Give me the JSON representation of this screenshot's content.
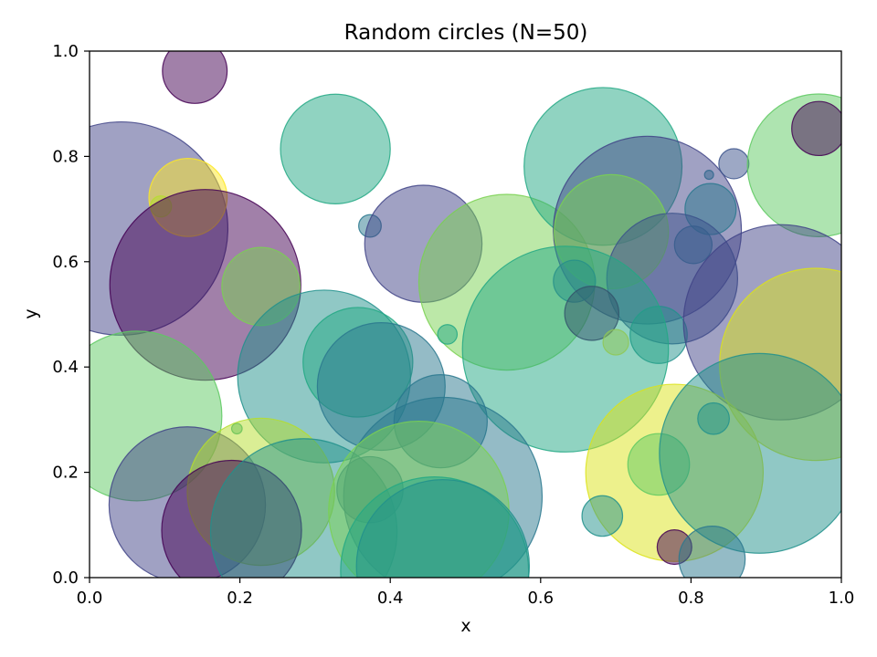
{
  "chart_data": {
    "type": "scatter",
    "title": "Random circles (N=50)",
    "xlabel": "x",
    "ylabel": "y",
    "xlim": [
      0.0,
      1.0
    ],
    "ylim": [
      0.0,
      1.0
    ],
    "xticks": [
      "0.0",
      "0.2",
      "0.4",
      "0.6",
      "0.8",
      "1.0"
    ],
    "yticks": [
      "0.0",
      "0.2",
      "0.4",
      "0.6",
      "0.8",
      "1.0"
    ],
    "grid": false,
    "alpha": 0.5,
    "points": [
      {
        "x": 0.14,
        "y": 0.962,
        "r": 0.043,
        "color": "#440154"
      },
      {
        "x": 0.327,
        "y": 0.814,
        "r": 0.073,
        "color": "#22a884"
      },
      {
        "x": 0.042,
        "y": 0.663,
        "r": 0.142,
        "color": "#414487"
      },
      {
        "x": 0.131,
        "y": 0.722,
        "r": 0.052,
        "color": "#fde725"
      },
      {
        "x": 0.095,
        "y": 0.705,
        "r": 0.014,
        "color": "#b5de2b"
      },
      {
        "x": 0.154,
        "y": 0.556,
        "r": 0.127,
        "color": "#440154"
      },
      {
        "x": 0.228,
        "y": 0.553,
        "r": 0.052,
        "color": "#7ad151"
      },
      {
        "x": 0.373,
        "y": 0.668,
        "r": 0.015,
        "color": "#2a788e"
      },
      {
        "x": 0.444,
        "y": 0.634,
        "r": 0.078,
        "color": "#414487"
      },
      {
        "x": 0.555,
        "y": 0.561,
        "r": 0.117,
        "color": "#7ad151"
      },
      {
        "x": 0.683,
        "y": 0.781,
        "r": 0.105,
        "color": "#22a884"
      },
      {
        "x": 0.742,
        "y": 0.66,
        "r": 0.125,
        "color": "#414487"
      },
      {
        "x": 0.694,
        "y": 0.657,
        "r": 0.076,
        "color": "#7ad151"
      },
      {
        "x": 0.826,
        "y": 0.7,
        "r": 0.034,
        "color": "#2a788e"
      },
      {
        "x": 0.857,
        "y": 0.786,
        "r": 0.02,
        "color": "#3b528b"
      },
      {
        "x": 0.824,
        "y": 0.765,
        "r": 0.006,
        "color": "#31688e"
      },
      {
        "x": 0.803,
        "y": 0.632,
        "r": 0.025,
        "color": "#31688e"
      },
      {
        "x": 0.97,
        "y": 0.783,
        "r": 0.095,
        "color": "#5ec962"
      },
      {
        "x": 0.97,
        "y": 0.853,
        "r": 0.036,
        "color": "#440154"
      },
      {
        "x": 0.775,
        "y": 0.568,
        "r": 0.087,
        "color": "#3b528b"
      },
      {
        "x": 0.645,
        "y": 0.563,
        "r": 0.028,
        "color": "#2a788e"
      },
      {
        "x": 0.668,
        "y": 0.502,
        "r": 0.036,
        "color": "#440154"
      },
      {
        "x": 0.757,
        "y": 0.461,
        "r": 0.038,
        "color": "#21918c"
      },
      {
        "x": 0.7,
        "y": 0.447,
        "r": 0.017,
        "color": "#fde725"
      },
      {
        "x": 0.92,
        "y": 0.485,
        "r": 0.13,
        "color": "#414487"
      },
      {
        "x": 0.966,
        "y": 0.405,
        "r": 0.128,
        "color": "#dce319"
      },
      {
        "x": 0.633,
        "y": 0.434,
        "r": 0.137,
        "color": "#22a884"
      },
      {
        "x": 0.476,
        "y": 0.462,
        "r": 0.013,
        "color": "#22a884"
      },
      {
        "x": 0.312,
        "y": 0.382,
        "r": 0.115,
        "color": "#21918c"
      },
      {
        "x": 0.357,
        "y": 0.409,
        "r": 0.073,
        "color": "#22a884"
      },
      {
        "x": 0.388,
        "y": 0.363,
        "r": 0.085,
        "color": "#2a788e"
      },
      {
        "x": 0.467,
        "y": 0.297,
        "r": 0.062,
        "color": "#2a788e"
      },
      {
        "x": 0.063,
        "y": 0.307,
        "r": 0.113,
        "color": "#5ec962"
      },
      {
        "x": 0.13,
        "y": 0.138,
        "r": 0.104,
        "color": "#414487"
      },
      {
        "x": 0.196,
        "y": 0.283,
        "r": 0.007,
        "color": "#22a884"
      },
      {
        "x": 0.228,
        "y": 0.163,
        "r": 0.098,
        "color": "#b5de2b"
      },
      {
        "x": 0.189,
        "y": 0.09,
        "r": 0.093,
        "color": "#440154"
      },
      {
        "x": 0.285,
        "y": 0.087,
        "r": 0.124,
        "color": "#21918c"
      },
      {
        "x": 0.47,
        "y": 0.154,
        "r": 0.132,
        "color": "#2a788e"
      },
      {
        "x": 0.373,
        "y": 0.167,
        "r": 0.044,
        "color": "#2a788e"
      },
      {
        "x": 0.438,
        "y": 0.126,
        "r": 0.12,
        "color": "#7ad151"
      },
      {
        "x": 0.459,
        "y": 0.013,
        "r": 0.125,
        "color": "#22a884"
      },
      {
        "x": 0.47,
        "y": 0.022,
        "r": 0.115,
        "color": "#21918c"
      },
      {
        "x": 0.778,
        "y": 0.199,
        "r": 0.118,
        "color": "#dce319"
      },
      {
        "x": 0.757,
        "y": 0.215,
        "r": 0.041,
        "color": "#5ec962"
      },
      {
        "x": 0.682,
        "y": 0.117,
        "r": 0.027,
        "color": "#21918c"
      },
      {
        "x": 0.778,
        "y": 0.058,
        "r": 0.023,
        "color": "#440154"
      },
      {
        "x": 0.83,
        "y": 0.302,
        "r": 0.021,
        "color": "#21918c"
      },
      {
        "x": 0.891,
        "y": 0.236,
        "r": 0.133,
        "color": "#21918c"
      },
      {
        "x": 0.828,
        "y": 0.035,
        "r": 0.044,
        "color": "#2a788e"
      }
    ]
  }
}
